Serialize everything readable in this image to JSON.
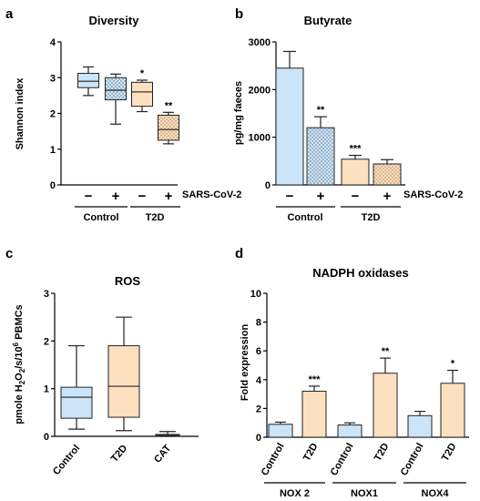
{
  "chart_data": [
    {
      "panel": "a",
      "type": "box",
      "title": "Diversity",
      "ylabel": "Shannon index",
      "ylim": [
        0,
        4
      ],
      "yticks": [
        "0",
        "1",
        "2",
        "3",
        "4"
      ],
      "signs": [
        "−",
        "+",
        "−",
        "+"
      ],
      "factor_label": "SARS-CoV-2",
      "groups": [
        "Control",
        "T2D"
      ],
      "boxes": [
        {
          "min": 2.5,
          "q1": 2.72,
          "median": 2.9,
          "q3": 3.12,
          "max": 3.3,
          "fill": "#cce4f7",
          "dotted": false,
          "star": ""
        },
        {
          "min": 1.7,
          "q1": 2.38,
          "median": 2.65,
          "q3": 3.0,
          "max": 3.1,
          "fill": "#cce4f7",
          "dotted": true,
          "star": ""
        },
        {
          "min": 2.05,
          "q1": 2.2,
          "median": 2.6,
          "q3": 2.87,
          "max": 2.93,
          "fill": "#fde0c0",
          "dotted": false,
          "star": "*"
        },
        {
          "min": 1.15,
          "q1": 1.25,
          "median": 1.55,
          "q3": 1.95,
          "max": 2.03,
          "fill": "#fde0c0",
          "dotted": true,
          "star": "**"
        }
      ]
    },
    {
      "panel": "b",
      "type": "bar",
      "title": "Butyrate",
      "ylabel": "pg/mg faeces",
      "ylim": [
        0,
        3000
      ],
      "yticks": [
        "0",
        "1000",
        "2000",
        "3000"
      ],
      "signs": [
        "−",
        "+",
        "−",
        "+"
      ],
      "factor_label": "SARS-CoV-2",
      "groups": [
        "Control",
        "T2D"
      ],
      "bars": [
        {
          "value": 2450,
          "err": 350,
          "fill": "#cce4f7",
          "dotted": false,
          "star": ""
        },
        {
          "value": 1200,
          "err": 230,
          "fill": "#cce4f7",
          "dotted": true,
          "star": "**"
        },
        {
          "value": 540,
          "err": 80,
          "fill": "#fde0c0",
          "dotted": false,
          "star": "***"
        },
        {
          "value": 440,
          "err": 90,
          "fill": "#fde0c0",
          "dotted": true,
          "star": ""
        }
      ]
    },
    {
      "panel": "c",
      "type": "box",
      "title": "ROS",
      "ylabel_parts": [
        "pmole H",
        "2",
        "O",
        "2",
        "/s/10",
        "6",
        " PBMCs"
      ],
      "ylim": [
        0,
        3
      ],
      "yticks": [
        "0",
        "1",
        "2",
        "3"
      ],
      "categories": [
        "Control",
        "T2D",
        "CAT"
      ],
      "boxes": [
        {
          "min": 0.15,
          "q1": 0.38,
          "median": 0.82,
          "q3": 1.03,
          "max": 1.9,
          "fill": "#cce4f7"
        },
        {
          "min": 0.12,
          "q1": 0.4,
          "median": 1.05,
          "q3": 1.9,
          "max": 2.5,
          "fill": "#fde0c0"
        },
        {
          "min": 0.0,
          "q1": 0.0,
          "median": 0.02,
          "q3": 0.04,
          "max": 0.1,
          "fill": "#fde0c0"
        }
      ]
    },
    {
      "panel": "d",
      "type": "bar",
      "title": "NADPH oxidases",
      "ylabel": "Fold expression",
      "ylim": [
        0,
        10
      ],
      "yticks": [
        "0",
        "2",
        "4",
        "6",
        "8",
        "10"
      ],
      "categories": [
        "Control",
        "T2D",
        "Control",
        "T2D",
        "Control",
        "T2D"
      ],
      "groups": [
        "NOX 2",
        "NOX1",
        "NOX4"
      ],
      "bars": [
        {
          "value": 0.9,
          "err": 0.15,
          "fill": "#cce4f7",
          "star": ""
        },
        {
          "value": 3.2,
          "err": 0.35,
          "fill": "#fde0c0",
          "star": "***"
        },
        {
          "value": 0.85,
          "err": 0.15,
          "fill": "#cce4f7",
          "star": ""
        },
        {
          "value": 4.45,
          "err": 1.05,
          "fill": "#fde0c0",
          "star": "**"
        },
        {
          "value": 1.5,
          "err": 0.3,
          "fill": "#cce4f7",
          "star": ""
        },
        {
          "value": 3.75,
          "err": 0.9,
          "fill": "#fde0c0",
          "star": "*"
        }
      ]
    }
  ]
}
